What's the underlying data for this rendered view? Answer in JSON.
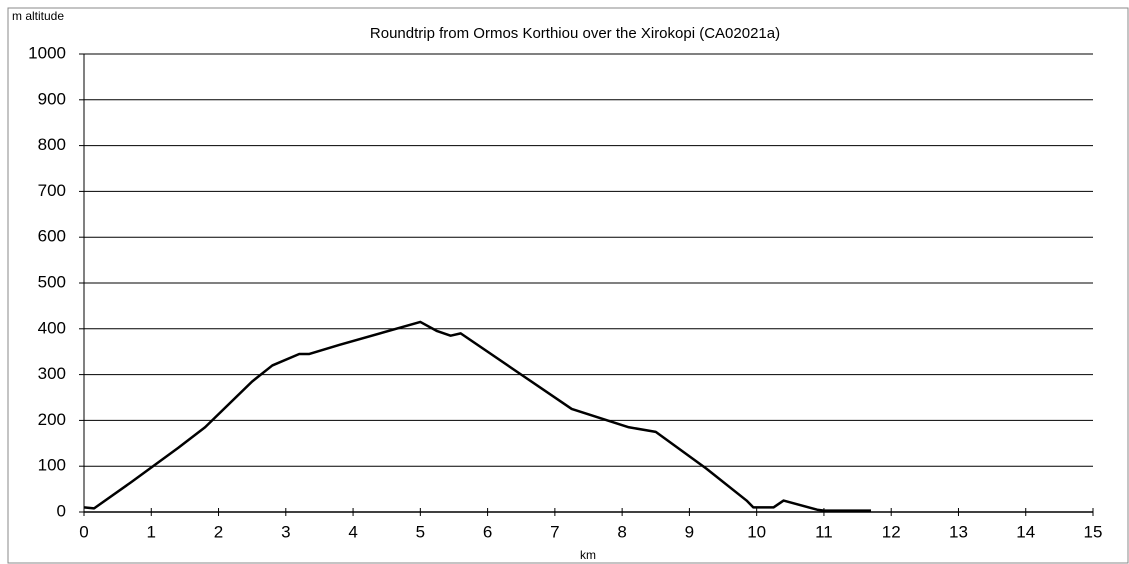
{
  "chart_data": {
    "type": "line",
    "title": "Roundtrip from Ormos Korthiou over  the Xirokopi (CA02021a)",
    "y_label": "m altitude",
    "x_label": "km",
    "x": [
      0,
      0.15,
      0.7,
      1.4,
      1.8,
      2.5,
      2.8,
      3.2,
      3.35,
      3.8,
      5.0,
      5.25,
      5.45,
      5.6,
      6.5,
      7.25,
      8.1,
      8.5,
      9.25,
      9.85,
      9.95,
      10.25,
      10.4,
      10.9,
      11.0,
      11.7
    ],
    "series": [
      {
        "color": "#000000",
        "values": [
          10,
          8,
          65,
          140,
          185,
          285,
          320,
          345,
          345,
          365,
          415,
          395,
          385,
          390,
          300,
          225,
          185,
          175,
          95,
          25,
          10,
          10,
          25,
          5,
          3,
          3
        ]
      }
    ],
    "xlim": [
      0,
      15
    ],
    "xticks": [
      0,
      1,
      2,
      3,
      4,
      5,
      6,
      7,
      8,
      9,
      10,
      11,
      12,
      13,
      14,
      15
    ],
    "ylim": [
      0,
      1000
    ],
    "yticks": [
      0,
      100,
      200,
      300,
      400,
      500,
      600,
      700,
      800,
      900,
      1000
    ],
    "grid": true
  }
}
